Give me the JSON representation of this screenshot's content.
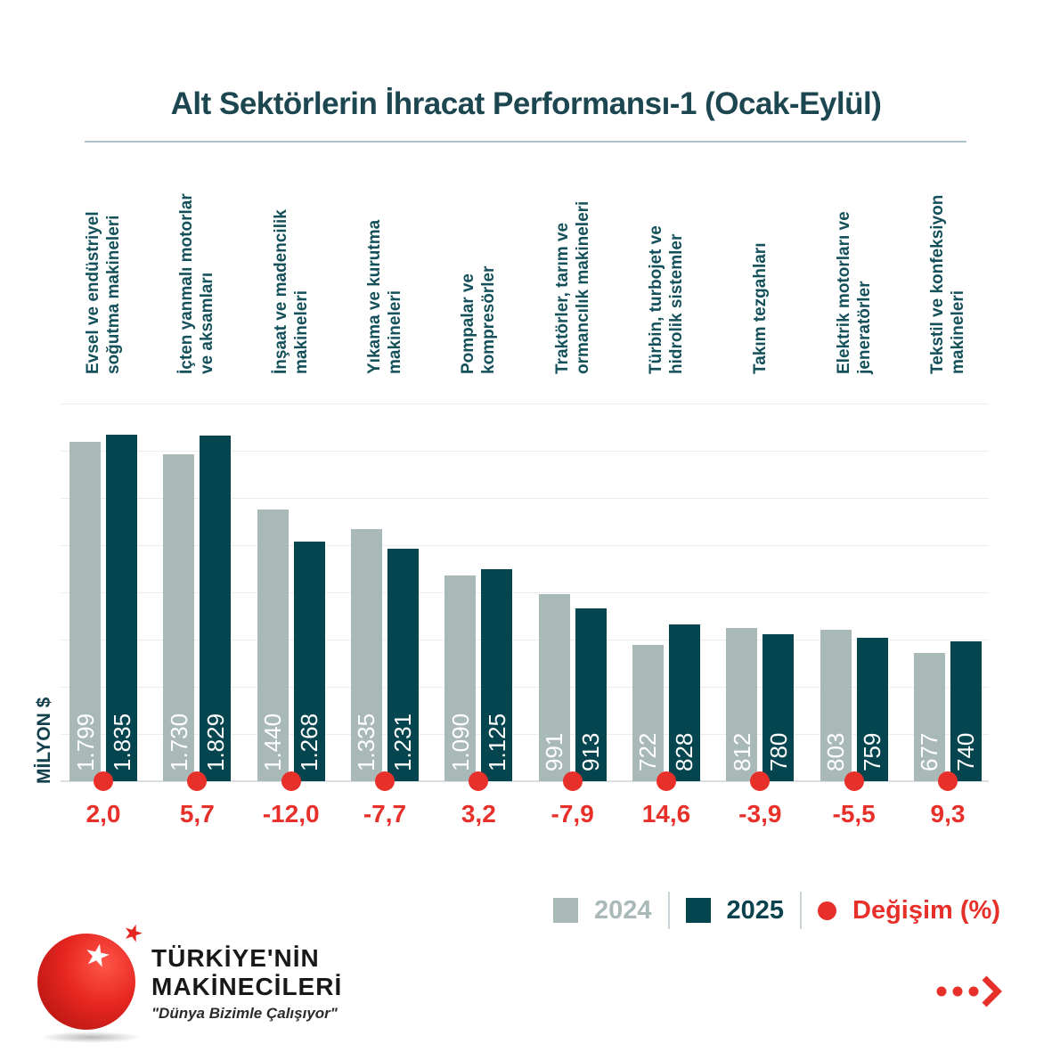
{
  "title": "Alt Sektörlerin İhracat Performansı-1 (Ocak-Eylül)",
  "y_axis_label": "MİLYON $",
  "legend": {
    "label_2024": "2024",
    "label_2025": "2025",
    "label_change": "Değişim (%)"
  },
  "colors": {
    "bar_2024": "#a9b9b8",
    "bar_2025": "#04454f",
    "change_red": "#e8302a",
    "title_teal": "#1d4750",
    "label_teal": "#14505a",
    "gridline": "#ececec"
  },
  "logo": {
    "line1": "TÜRKİYE'NİN",
    "line2": "MAKİNECİLERİ",
    "tagline": "\"Dünya Bizimle Çalışıyor\""
  },
  "chart_data": {
    "type": "bar",
    "title": "Alt Sektörlerin İhracat Performansı-1 (Ocak-Eylül)",
    "ylabel": "MİLYON $",
    "ylim": [
      0,
      2000
    ],
    "gridline_step": 250,
    "grid": true,
    "legend_position": "bottom-right",
    "categories": [
      "Evsel ve endüstriyel soğutma makineleri",
      "İçten yanmalı motorlar ve aksamları",
      "İnşaat ve madencilik makineleri",
      "Yıkama ve kurutma makineleri",
      "Pompalar ve kompresörler",
      "Traktörler, tarım ve ormancılık makineleri",
      "Türbin, turbojet ve hidrolik sistemler",
      "Takım tezgahları",
      "Elektrik motorları ve jeneratörler",
      "Tekstil ve konfeksiyon makineleri"
    ],
    "categories_lines": [
      [
        "Evsel ve endüstriyel",
        "soğutma makineleri"
      ],
      [
        "İçten yanmalı motorlar",
        "ve aksamları"
      ],
      [
        "İnşaat ve madencilik",
        "makineleri"
      ],
      [
        "Yıkama ve kurutma",
        "makineleri"
      ],
      [
        "Pompalar ve",
        "kompresörler"
      ],
      [
        "Traktörler, tarım ve",
        "ormancılık makineleri"
      ],
      [
        "Türbin, turbojet ve",
        "hidrolik sistemler"
      ],
      [
        "Takım tezgahları"
      ],
      [
        "Elektrik motorları ve",
        "jeneratörler"
      ],
      [
        "Tekstil ve konfeksiyon",
        "makineleri"
      ]
    ],
    "series": [
      {
        "name": "2024",
        "values": [
          1799,
          1730,
          1440,
          1335,
          1090,
          991,
          722,
          812,
          803,
          677
        ]
      },
      {
        "name": "2025",
        "values": [
          1835,
          1829,
          1268,
          1231,
          1125,
          913,
          828,
          780,
          759,
          740
        ]
      }
    ],
    "value_labels_2024": [
      "1.799",
      "1.730",
      "1.440",
      "1.335",
      "1.090",
      "991",
      "722",
      "812",
      "803",
      "677"
    ],
    "value_labels_2025": [
      "1.835",
      "1.829",
      "1.268",
      "1.231",
      "1.125",
      "913",
      "828",
      "780",
      "759",
      "740"
    ],
    "change_pct": [
      "2,0",
      "5,7",
      "-12,0",
      "-7,7",
      "3,2",
      "-7,9",
      "14,6",
      "-3,9",
      "-5,5",
      "9,3"
    ]
  }
}
